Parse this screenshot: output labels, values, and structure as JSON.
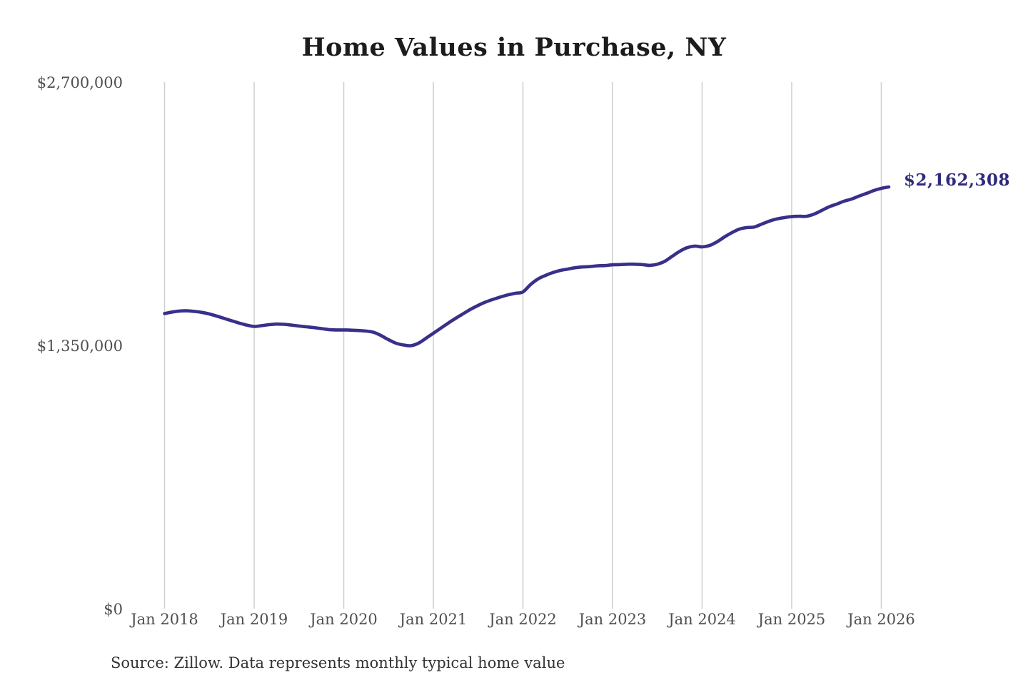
{
  "page": {
    "background": "#ffffff"
  },
  "header": {
    "title": "Home Values in Purchase, NY"
  },
  "annotation": {
    "label": "$2,162,308"
  },
  "footer": {
    "source": "Source: Zillow. Data represents monthly typical home value"
  },
  "chart_data": {
    "type": "line",
    "title": "Home Values in Purchase, NY",
    "xlabel": "",
    "ylabel": "",
    "ylim": [
      0,
      2700000
    ],
    "grid": "vertical-only",
    "legend": "none",
    "line_color": "#38308a",
    "grid_color": "#d0d0d0",
    "axis_label_color": "#4f4f4f",
    "annotation_color": "#2f2b7c",
    "last_point_label": "$2,162,308",
    "y_ticks": [
      {
        "value": 0,
        "label": "$0"
      },
      {
        "value": 1350000,
        "label": "$1,350,000"
      },
      {
        "value": 2700000,
        "label": "$2,700,000"
      }
    ],
    "x_ticks": [
      {
        "month_index": 0,
        "label": "Jan 2018"
      },
      {
        "month_index": 12,
        "label": "Jan 2019"
      },
      {
        "month_index": 24,
        "label": "Jan 2020"
      },
      {
        "month_index": 36,
        "label": "Jan 2021"
      },
      {
        "month_index": 48,
        "label": "Jan 2022"
      },
      {
        "month_index": 60,
        "label": "Jan 2023"
      },
      {
        "month_index": 72,
        "label": "Jan 2024"
      },
      {
        "month_index": 84,
        "label": "Jan 2025"
      },
      {
        "month_index": 96,
        "label": "Jan 2026"
      }
    ],
    "series": [
      {
        "name": "Monthly typical home value",
        "start_month": "2018-01",
        "end_month": "2026-02",
        "values": [
          1513000,
          1521000,
          1526000,
          1527000,
          1524000,
          1519000,
          1511000,
          1500000,
          1488000,
          1476000,
          1464000,
          1454000,
          1447000,
          1451000,
          1456000,
          1459000,
          1458000,
          1454000,
          1449000,
          1445000,
          1441000,
          1436000,
          1431000,
          1429000,
          1429000,
          1428000,
          1426000,
          1423000,
          1417000,
          1400000,
          1379000,
          1361000,
          1352000,
          1348000,
          1361000,
          1386000,
          1412000,
          1438000,
          1464000,
          1489000,
          1512000,
          1535000,
          1555000,
          1572000,
          1586000,
          1598000,
          1609000,
          1617000,
          1624000,
          1661000,
          1690000,
          1708000,
          1723000,
          1734000,
          1741000,
          1748000,
          1752000,
          1754000,
          1758000,
          1759000,
          1763000,
          1764000,
          1766000,
          1766000,
          1764000,
          1760000,
          1766000,
          1781000,
          1807000,
          1832000,
          1851000,
          1859000,
          1855000,
          1862000,
          1881000,
          1906000,
          1928000,
          1946000,
          1954000,
          1957000,
          1972000,
          1987000,
          1998000,
          2005000,
          2010000,
          2012000,
          2012000,
          2023000,
          2041000,
          2060000,
          2074000,
          2089000,
          2100000,
          2115000,
          2129000,
          2144000,
          2155000,
          2162308
        ]
      }
    ]
  }
}
